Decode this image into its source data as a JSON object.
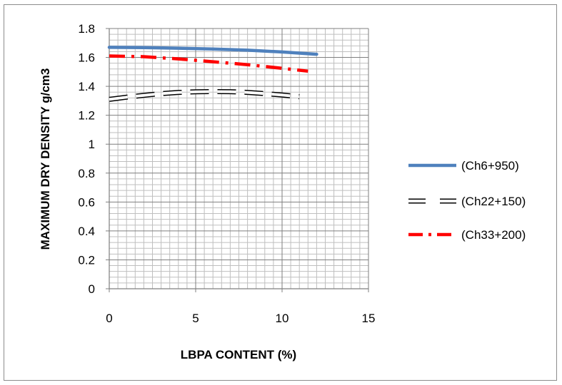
{
  "chart_data": {
    "type": "line",
    "xlabel": "LBPA CONTENT (%)",
    "ylabel": "MAXIMUM DRY DENSITY  g/cm3",
    "xlim": [
      0,
      15
    ],
    "ylim": [
      0,
      1.8
    ],
    "x_ticks": [
      "0",
      "5",
      "10",
      "15"
    ],
    "y_ticks": [
      "0",
      "0.2",
      "0.4",
      "0.6",
      "0.8",
      "1",
      "1.2",
      "1.4",
      "1.6",
      "1.8"
    ],
    "grid": true,
    "legend_position": "right",
    "series": [
      {
        "name": "(Ch6+950)",
        "color": "#4f81bd",
        "style": "solid",
        "x": [
          0,
          2,
          4,
          6,
          8,
          10,
          12
        ],
        "y": [
          1.67,
          1.668,
          1.664,
          1.658,
          1.65,
          1.638,
          1.622
        ]
      },
      {
        "name": "(Ch22+150)",
        "color": "#000000",
        "style": "dash-outline",
        "x": [
          0,
          1,
          2,
          3,
          4,
          5,
          6,
          7,
          8,
          9,
          10,
          11
        ],
        "y": [
          1.31,
          1.325,
          1.338,
          1.35,
          1.358,
          1.362,
          1.364,
          1.363,
          1.358,
          1.35,
          1.34,
          1.328
        ]
      },
      {
        "name": "(Ch33+200)",
        "color": "#ff0000",
        "style": "dash-dot",
        "x": [
          0,
          2,
          4,
          6,
          8,
          10,
          11.5
        ],
        "y": [
          1.61,
          1.605,
          1.59,
          1.57,
          1.55,
          1.525,
          1.505
        ]
      }
    ]
  }
}
